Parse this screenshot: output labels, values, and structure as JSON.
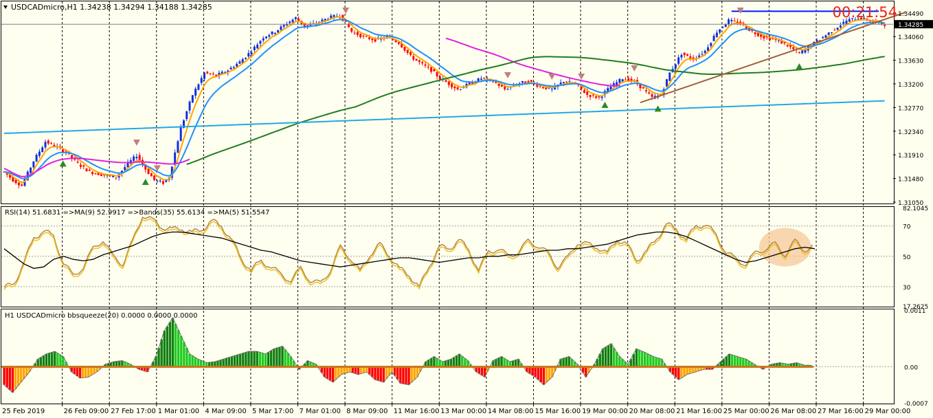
{
  "app": {
    "symbol_header": "USDCADmicro,H1  1.34238 1.34294 1.34188 1.34285",
    "timer": "00:21:54"
  },
  "colors": {
    "background": "#fffff0",
    "timer": "#e8201a",
    "grid": "#000000",
    "bull_candle": "#1030e0",
    "bear_candle": "#ff0000",
    "ma_fast": "#ffa500",
    "ma_slow": "#1e90ff",
    "ma_green": "#1e7d1e",
    "ma_cyan": "#1ea8e8",
    "ma_magenta": "#e020e0",
    "resistance_line": "#0018ff",
    "trend_line": "#a0603a",
    "rsi_line": "#f0c020",
    "rsi_ma": "#b08850",
    "rsi_bands": "#000000",
    "squeeze_up": "#1ecb1e",
    "squeeze_up_dark": "#118011",
    "squeeze_down": "#ff0000",
    "squeeze_down_light": "#ffa500",
    "highlight": "#f5c89a"
  },
  "x_axis": {
    "labels": [
      "25 Feb 2019",
      "26 Feb 09:00",
      "27 Feb 17:00",
      "1 Mar 01:00",
      "4 Mar 09:00",
      "5 Mar 17:00",
      "7 Mar 01:00",
      "8 Mar 09:00",
      "11 Mar 16:00",
      "13 Mar 00:00",
      "14 Mar 08:00",
      "15 Mar 16:00",
      "19 Mar 00:00",
      "20 Mar 08:00",
      "21 Mar 16:00",
      "25 Mar 00:00",
      "26 Mar 08:00",
      "27 Mar 16:00",
      "29 Mar 00:00"
    ]
  },
  "chart_data": [
    {
      "type": "candlestick",
      "title": "USDCADmicro,H1  1.34238 1.34294 1.34188 1.34285",
      "ylim": [
        1.3105,
        1.346
      ],
      "y_ticks": [
        "1.34490",
        "1.34060",
        "1.33630",
        "1.33200",
        "1.32770",
        "1.32340",
        "1.31910",
        "1.31480",
        "1.31050"
      ],
      "current_price": "1.34285",
      "price_path": [
        [
          0,
          1.316
        ],
        [
          3,
          1.3145
        ],
        [
          6,
          1.3135
        ],
        [
          10,
          1.318
        ],
        [
          14,
          1.3215
        ],
        [
          18,
          1.3205
        ],
        [
          21,
          1.3195
        ],
        [
          25,
          1.3175
        ],
        [
          29,
          1.316
        ],
        [
          33,
          1.3155
        ],
        [
          38,
          1.315
        ],
        [
          42,
          1.3175
        ],
        [
          45,
          1.319
        ],
        [
          48,
          1.3165
        ],
        [
          51,
          1.3145
        ],
        [
          54,
          1.314
        ],
        [
          56,
          1.315
        ],
        [
          60,
          1.324
        ],
        [
          64,
          1.33
        ],
        [
          68,
          1.334
        ],
        [
          72,
          1.3335
        ],
        [
          76,
          1.3345
        ],
        [
          80,
          1.336
        ],
        [
          84,
          1.338
        ],
        [
          88,
          1.3405
        ],
        [
          92,
          1.3415
        ],
        [
          96,
          1.343
        ],
        [
          99,
          1.344
        ],
        [
          102,
          1.3425
        ],
        [
          106,
          1.343
        ],
        [
          110,
          1.344
        ],
        [
          114,
          1.3445
        ],
        [
          118,
          1.3415
        ],
        [
          122,
          1.3405
        ],
        [
          126,
          1.34
        ],
        [
          130,
          1.3405
        ],
        [
          134,
          1.3395
        ],
        [
          138,
          1.337
        ],
        [
          142,
          1.3355
        ],
        [
          145,
          1.3345
        ],
        [
          148,
          1.333
        ],
        [
          151,
          1.332
        ],
        [
          154,
          1.331
        ],
        [
          158,
          1.332
        ],
        [
          162,
          1.333
        ],
        [
          166,
          1.3325
        ],
        [
          170,
          1.331
        ],
        [
          174,
          1.332
        ],
        [
          178,
          1.3325
        ],
        [
          182,
          1.3315
        ],
        [
          186,
          1.331
        ],
        [
          190,
          1.3325
        ],
        [
          194,
          1.332
        ],
        [
          198,
          1.33
        ],
        [
          202,
          1.3295
        ],
        [
          206,
          1.3315
        ],
        [
          210,
          1.333
        ],
        [
          214,
          1.3325
        ],
        [
          217,
          1.331
        ],
        [
          220,
          1.3295
        ],
        [
          223,
          1.33
        ],
        [
          226,
          1.334
        ],
        [
          230,
          1.3375
        ],
        [
          234,
          1.3365
        ],
        [
          238,
          1.338
        ],
        [
          242,
          1.3415
        ],
        [
          246,
          1.3435
        ],
        [
          250,
          1.343
        ],
        [
          254,
          1.3415
        ],
        [
          258,
          1.3405
        ],
        [
          262,
          1.34
        ],
        [
          266,
          1.339
        ],
        [
          270,
          1.3375
        ],
        [
          274,
          1.339
        ],
        [
          278,
          1.3405
        ],
        [
          282,
          1.342
        ],
        [
          286,
          1.3435
        ],
        [
          290,
          1.344
        ],
        [
          294,
          1.3435
        ],
        [
          299,
          1.3428
        ]
      ]
    },
    {
      "type": "line",
      "title": "RSI(14) 51.6831  =>MA(9) 52.9917  =>Bands(35) 55.6134  =>MA(5) 51.5547",
      "ylim": [
        17.2625,
        82.1045
      ],
      "y_ticks": [
        "82.1045",
        "70",
        "50",
        "30",
        "17.2625"
      ],
      "levels": [
        70,
        50,
        30
      ],
      "series": [
        {
          "values": [
            28,
            30,
            45,
            60,
            66,
            61,
            45,
            35,
            42,
            53,
            60,
            48,
            44,
            58,
            76,
            72,
            68,
            66,
            67,
            64,
            66,
            72,
            68,
            60,
            46,
            40,
            45,
            42,
            36,
            33,
            40,
            33,
            30,
            40,
            54,
            48,
            38,
            50,
            56,
            49,
            40,
            36,
            28,
            42,
            55,
            53,
            60,
            52,
            40,
            51,
            54,
            48,
            52,
            58,
            56,
            50,
            42,
            47,
            58,
            56,
            55,
            50,
            60,
            56,
            46,
            52,
            60,
            70,
            66,
            60,
            68,
            70,
            62,
            52,
            46,
            44,
            50,
            54,
            56,
            50,
            58,
            53,
            55
          ]
        },
        {
          "values": [
            55,
            50,
            45,
            42,
            43,
            48,
            50,
            48,
            47,
            48,
            51,
            53,
            55,
            57,
            60,
            63,
            65,
            66,
            66,
            65,
            64,
            63,
            62,
            60,
            58,
            56,
            54,
            53,
            51,
            49,
            47,
            46,
            45,
            44,
            43,
            44,
            45,
            46,
            47,
            48,
            49,
            49,
            48,
            47,
            46,
            47,
            48,
            49,
            49,
            50,
            50,
            51,
            51,
            52,
            53,
            54,
            54,
            55,
            55,
            56,
            57,
            58,
            60,
            62,
            64,
            65,
            66,
            66,
            65,
            63,
            60,
            57,
            54,
            51,
            48,
            46,
            47,
            49,
            51,
            53,
            55,
            56,
            55
          ]
        }
      ],
      "highlight": {
        "x_fraction": 0.96,
        "value": 56
      }
    },
    {
      "type": "bar",
      "title": "H1 USDCADmicro bbsqueeze(20) 0.0000 0.0000 0.0000",
      "ylim": [
        -0.0007,
        0.0011
      ],
      "y_ticks": [
        "0.0011",
        "0.00",
        "-0.0007"
      ],
      "histogram": [
        [
          0,
          -0.00035
        ],
        [
          3,
          -0.0005
        ],
        [
          6,
          -0.0003
        ],
        [
          9,
          -0.0001
        ],
        [
          12,
          0.00015
        ],
        [
          15,
          0.00025
        ],
        [
          18,
          0.0003
        ],
        [
          21,
          0.0002
        ],
        [
          24,
          -0.0001
        ],
        [
          27,
          -0.00022
        ],
        [
          30,
          -0.0002
        ],
        [
          33,
          -0.0001
        ],
        [
          36,
          5e-05
        ],
        [
          39,
          0.0001
        ],
        [
          42,
          0.00012
        ],
        [
          45,
          5e-05
        ],
        [
          48,
          -5e-05
        ],
        [
          51,
          -0.0001
        ],
        [
          54,
          0.0002
        ],
        [
          57,
          0.0007
        ],
        [
          60,
          0.00095
        ],
        [
          63,
          0.0006
        ],
        [
          66,
          0.00025
        ],
        [
          69,
          0.00015
        ],
        [
          72,
          8e-05
        ],
        [
          75,
          0.0001
        ],
        [
          78,
          0.00015
        ],
        [
          81,
          0.0002
        ],
        [
          84,
          0.00025
        ],
        [
          87,
          0.0003
        ],
        [
          90,
          0.0003
        ],
        [
          93,
          0.00025
        ],
        [
          96,
          0.00035
        ],
        [
          99,
          0.0004
        ],
        [
          102,
          0.0002
        ],
        [
          105,
          -5e-05
        ],
        [
          108,
          0.00012
        ],
        [
          111,
          5e-05
        ],
        [
          114,
          -0.0002
        ],
        [
          117,
          -0.0003
        ],
        [
          120,
          -0.00015
        ],
        [
          123,
          -0.0001
        ],
        [
          126,
          -0.00015
        ],
        [
          129,
          -0.0001
        ],
        [
          132,
          -0.00025
        ],
        [
          135,
          -0.0003
        ],
        [
          138,
          -0.0001
        ],
        [
          141,
          -0.00032
        ],
        [
          144,
          -0.00035
        ],
        [
          147,
          -0.0002
        ],
        [
          150,
          0.0001
        ],
        [
          153,
          0.0002
        ],
        [
          156,
          0.0001
        ],
        [
          159,
          0.00015
        ],
        [
          162,
          0.00025
        ],
        [
          165,
          0.00012
        ],
        [
          168,
          -0.0001
        ],
        [
          171,
          -0.0002
        ],
        [
          174,
          0.00012
        ],
        [
          177,
          0.0002
        ],
        [
          180,
          0.0001
        ],
        [
          183,
          0.00015
        ],
        [
          186,
          -0.0001
        ],
        [
          189,
          -0.0002
        ],
        [
          192,
          -0.00035
        ],
        [
          195,
          -0.0002
        ],
        [
          198,
          0.00015
        ],
        [
          201,
          0.0002
        ],
        [
          204,
          5e-05
        ],
        [
          207,
          -0.0002
        ],
        [
          210,
          5e-05
        ],
        [
          213,
          0.00035
        ],
        [
          216,
          0.00045
        ],
        [
          219,
          0.0002
        ],
        [
          222,
          5e-05
        ],
        [
          225,
          0.00035
        ],
        [
          228,
          0.00028
        ],
        [
          231,
          0.0002
        ],
        [
          234,
          0.00015
        ],
        [
          237,
          -0.0001
        ],
        [
          240,
          -0.00025
        ],
        [
          243,
          -0.00015
        ],
        [
          246,
          -0.0001
        ],
        [
          249,
          -5e-05
        ],
        [
          252,
          -5e-05
        ],
        [
          255,
          0.0001
        ],
        [
          258,
          0.00025
        ],
        [
          261,
          0.0002
        ],
        [
          264,
          0.00015
        ],
        [
          267,
          5e-05
        ],
        [
          270,
          -5e-05
        ],
        [
          273,
          5e-05
        ],
        [
          276,
          8e-05
        ],
        [
          279,
          5e-05
        ],
        [
          282,
          8e-05
        ],
        [
          285,
          3e-05
        ]
      ]
    }
  ]
}
